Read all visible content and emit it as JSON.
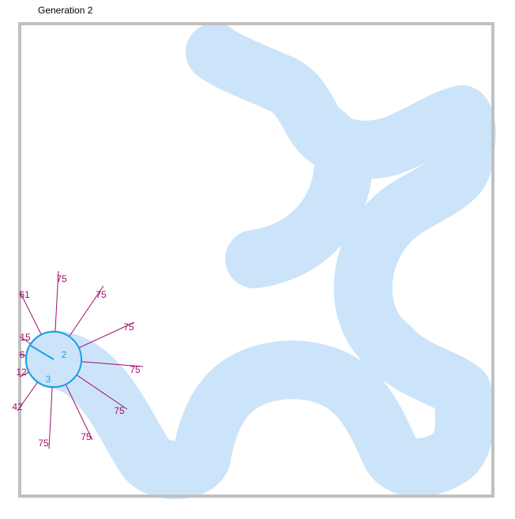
{
  "generation_label": "Generation 2",
  "colors": {
    "border": "#c0c0c0",
    "track": "#cce4fa",
    "sensor": "#a0106a",
    "agent_stroke": "#1aa0e6",
    "agent_fill": "#cce4fa",
    "agent_text": "#1aa0e6"
  },
  "agent": {
    "label_a": "2",
    "label_b": "3"
  },
  "sensors": [
    {
      "name": "sensor-1",
      "value": "75"
    },
    {
      "name": "sensor-2",
      "value": "75"
    },
    {
      "name": "sensor-3",
      "value": "75"
    },
    {
      "name": "sensor-4",
      "value": "75"
    },
    {
      "name": "sensor-5",
      "value": "75"
    },
    {
      "name": "sensor-6",
      "value": "75"
    },
    {
      "name": "sensor-7",
      "value": "75"
    },
    {
      "name": "sensor-8",
      "value": "42"
    },
    {
      "name": "sensor-9",
      "value": "12"
    },
    {
      "name": "sensor-10",
      "value": "6"
    },
    {
      "name": "sensor-11",
      "value": "15"
    },
    {
      "name": "sensor-12",
      "value": "61"
    }
  ]
}
